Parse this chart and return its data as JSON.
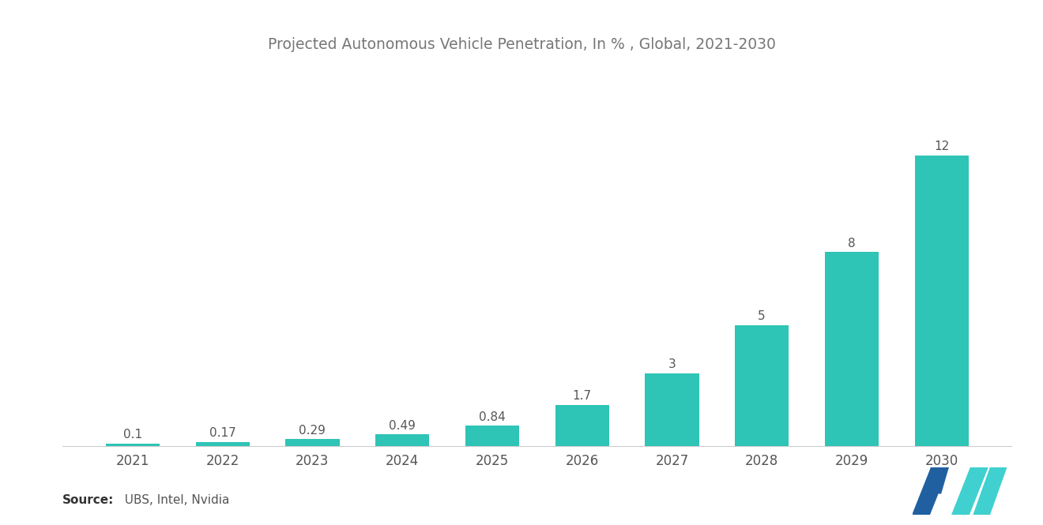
{
  "title": "Projected Autonomous Vehicle Penetration, In % , Global, 2021-2030",
  "categories": [
    "2021",
    "2022",
    "2023",
    "2024",
    "2025",
    "2026",
    "2027",
    "2028",
    "2029",
    "2030"
  ],
  "values": [
    0.1,
    0.17,
    0.29,
    0.49,
    0.84,
    1.7,
    3,
    5,
    8,
    12
  ],
  "labels": [
    "0.1",
    "0.17",
    "0.29",
    "0.49",
    "0.84",
    "1.7",
    "3",
    "5",
    "8",
    "12"
  ],
  "bar_color": "#2EC4B6",
  "background_color": "#ffffff",
  "title_color": "#777777",
  "label_color": "#555555",
  "xlabel_color": "#555555",
  "source_bold": "Source:",
  "source_text": "  UBS, Intel, Nvidia",
  "title_fontsize": 13.5,
  "label_fontsize": 11,
  "tick_fontsize": 12,
  "source_fontsize": 11,
  "ylim": [
    0,
    14.5
  ],
  "logo_dark": "#2060a0",
  "logo_teal": "#40d0d0"
}
